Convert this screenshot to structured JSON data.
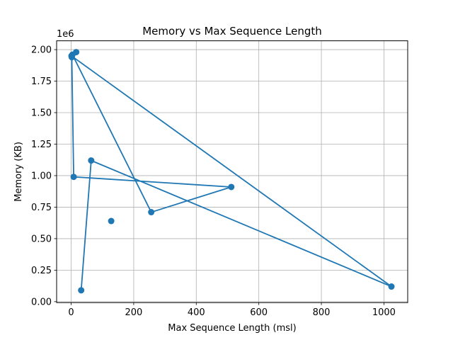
{
  "chart_data": {
    "type": "line",
    "title": "Memory vs Max Sequence Length",
    "xlabel": "Max Sequence Length (msl)",
    "ylabel": "Memory (KB)",
    "y_offset_text": "1e6",
    "xlim": [
      -46.5,
      1076
    ],
    "ylim": [
      -0.0075,
      2.07
    ],
    "x_ticks": [
      0,
      200,
      400,
      600,
      800,
      1000
    ],
    "x_tick_labels": [
      "0",
      "200",
      "400",
      "600",
      "800",
      "1000"
    ],
    "y_ticks": [
      0.0,
      0.25,
      0.5,
      0.75,
      1.0,
      1.25,
      1.5,
      1.75,
      2.0
    ],
    "y_tick_labels": [
      "0.00",
      "0.25",
      "0.50",
      "0.75",
      "1.00",
      "1.25",
      "1.50",
      "1.75",
      "2.00"
    ],
    "grid": true,
    "color": "#1f77b4",
    "marker": "circle",
    "series": [
      {
        "x": [
          1,
          2,
          4,
          8,
          16,
          32,
          64,
          128,
          256,
          512,
          1024
        ],
        "y": [
          1.95,
          1.94,
          1.96,
          0.99,
          1.98,
          0.09,
          1.12,
          0.64,
          0.71,
          0.91,
          0.12
        ]
      }
    ],
    "path_order": [
      4,
      1,
      3,
      9,
      8,
      2,
      0,
      10,
      6,
      5
    ]
  }
}
